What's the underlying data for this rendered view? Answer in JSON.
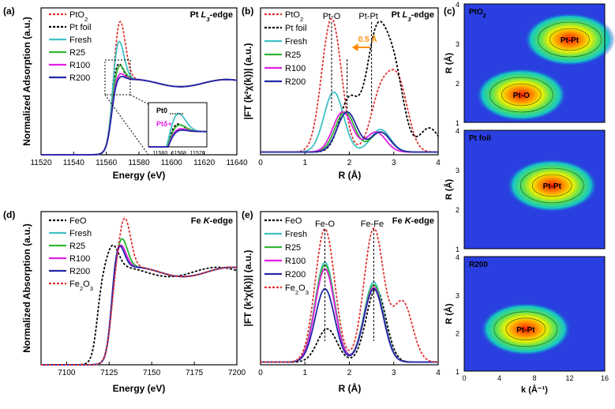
{
  "figure": {
    "colors": {
      "red": "#e03131",
      "black": "#000000",
      "cyan": "#3fc1c6",
      "green": "#33b533",
      "magenta": "#e21fe2",
      "navy": "#2228a6",
      "orange": "#ff8c00"
    }
  },
  "chart_data": [
    {
      "id": "a",
      "panel_label": "(a)",
      "type": "line",
      "title": "Pt L3-edge",
      "xlabel": "Energy (eV)",
      "ylabel": "Normalized Adsorption (a.u.)",
      "xlim": [
        11520,
        11640
      ],
      "xticks": [
        "11520",
        "11540",
        "11560",
        "11580",
        "11600",
        "11620",
        "11640"
      ],
      "legend": [
        "PtO2",
        "Pt foil",
        "Fresh",
        "R25",
        "R100",
        "R200"
      ],
      "series": [
        {
          "name": "PtO2",
          "peak_x": 11568,
          "peak": 1.9
        },
        {
          "name": "Pt foil",
          "peak_x": 11566,
          "peak": 1.35
        },
        {
          "name": "Fresh",
          "peak_x": 11567,
          "peak": 1.65
        },
        {
          "name": "R25",
          "peak_x": 11567,
          "peak": 1.28
        },
        {
          "name": "R100",
          "peak_x": 11567,
          "peak": 1.15
        },
        {
          "name": "R200",
          "peak_x": 11567,
          "peak": 1.1
        }
      ],
      "inset": {
        "xticks": [
          "11560",
          "11568",
          "11576"
        ],
        "labels": [
          "Pt0",
          "Ptδ+"
        ]
      }
    },
    {
      "id": "b",
      "panel_label": "(b)",
      "type": "line",
      "title": "Pt L3-edge",
      "xlabel": "R (Å)",
      "ylabel": "|FT (k²χ(k))| (a.u.)",
      "xlim": [
        0,
        4
      ],
      "xticks": [
        "0",
        "1",
        "2",
        "3",
        "4"
      ],
      "legend": [
        "PtO2",
        "Pt foil",
        "Fresh",
        "R25",
        "R100",
        "R200"
      ],
      "annotations": [
        "Pt-O",
        "Pt-Pt",
        "0.5 Å"
      ],
      "series": [
        {
          "name": "PtO2",
          "peaks": [
            [
              1.6,
              1.0
            ],
            [
              2.7,
              0.42
            ],
            [
              3.1,
              0.5
            ]
          ]
        },
        {
          "name": "Pt foil",
          "peaks": [
            [
              2.0,
              0.4
            ],
            [
              2.6,
              0.82
            ],
            [
              3.0,
              0.6
            ],
            [
              3.8,
              0.18
            ]
          ]
        },
        {
          "name": "Fresh",
          "peaks": [
            [
              1.65,
              0.45
            ],
            [
              2.7,
              0.17
            ]
          ]
        },
        {
          "name": "R25",
          "peaks": [
            [
              1.9,
              0.3
            ],
            [
              2.7,
              0.15
            ]
          ]
        },
        {
          "name": "R100",
          "peaks": [
            [
              1.85,
              0.3
            ],
            [
              2.6,
              0.15
            ]
          ]
        },
        {
          "name": "R200",
          "peaks": [
            [
              1.95,
              0.3
            ],
            [
              2.7,
              0.15
            ]
          ]
        }
      ]
    },
    {
      "id": "c",
      "panel_label": "(c)",
      "type": "heatmap",
      "xlabel": "k (Å⁻¹)",
      "ylabel": "R (Å)",
      "xlim": [
        0,
        16
      ],
      "ylim": [
        1,
        4
      ],
      "xticks": [
        "0",
        "4",
        "8",
        "12",
        "16"
      ],
      "yticks": [
        "1",
        "2",
        "3",
        "4"
      ],
      "subplots": [
        {
          "name": "PtO2",
          "hotspots": [
            {
              "label": "Pt-O",
              "k": 6.5,
              "R": 1.7
            },
            {
              "label": "Pt-Pt",
              "k": 12,
              "R": 3.1
            }
          ]
        },
        {
          "name": "Pt foil",
          "hotspots": [
            {
              "label": "Pt-Pt",
              "k": 10,
              "R": 2.6
            }
          ]
        },
        {
          "name": "R200",
          "hotspots": [
            {
              "label": "Pt-Pt",
              "k": 7,
              "R": 2.1
            }
          ]
        }
      ]
    },
    {
      "id": "d",
      "panel_label": "(d)",
      "type": "line",
      "title": "Fe K-edge",
      "xlabel": "Energy (eV)",
      "ylabel": "Normalized Absorption (a.u.)",
      "xlim": [
        7085,
        7200
      ],
      "xticks": [
        "7100",
        "7125",
        "7150",
        "7175",
        "7200"
      ],
      "legend": [
        "FeO",
        "Fresh",
        "R25",
        "R100",
        "R200",
        "Fe2O3"
      ],
      "series": [
        {
          "name": "FeO",
          "peak_x": 7127,
          "peak": 1.25
        },
        {
          "name": "Fresh",
          "peak_x": 7132,
          "peak": 1.35
        },
        {
          "name": "R25",
          "peak_x": 7132,
          "peak": 1.35
        },
        {
          "name": "R100",
          "peak_x": 7131,
          "peak": 1.3
        },
        {
          "name": "R200",
          "peak_x": 7130,
          "peak": 1.32
        },
        {
          "name": "Fe2O3",
          "peak_x": 7134,
          "peak": 1.55
        }
      ]
    },
    {
      "id": "e",
      "panel_label": "(e)",
      "type": "line",
      "title": "Fe K-edge",
      "xlabel": "R (Å)",
      "ylabel": "|FT (k³χ(k))| (a.u.)",
      "xlim": [
        0,
        4
      ],
      "xticks": [
        "0",
        "1",
        "2",
        "3",
        "4"
      ],
      "legend": [
        "FeO",
        "Fresh",
        "R25",
        "R100",
        "R200",
        "Fe2O3"
      ],
      "annotations": [
        "Fe-O",
        "Fe-Fe"
      ],
      "series": [
        {
          "name": "FeO",
          "peaks": [
            [
              1.5,
              0.25
            ],
            [
              2.6,
              0.55
            ]
          ]
        },
        {
          "name": "Fresh",
          "peaks": [
            [
              1.45,
              0.75
            ],
            [
              2.55,
              0.6
            ]
          ]
        },
        {
          "name": "R25",
          "peaks": [
            [
              1.45,
              0.73
            ],
            [
              2.55,
              0.58
            ]
          ]
        },
        {
          "name": "R100",
          "peaks": [
            [
              1.45,
              0.7
            ],
            [
              2.55,
              0.56
            ]
          ]
        },
        {
          "name": "R200",
          "peaks": [
            [
              1.45,
              0.55
            ],
            [
              2.55,
              0.55
            ]
          ]
        },
        {
          "name": "Fe2O3",
          "peaks": [
            [
              1.45,
              1.0
            ],
            [
              2.55,
              1.0
            ],
            [
              3.2,
              0.45
            ]
          ]
        }
      ]
    }
  ]
}
